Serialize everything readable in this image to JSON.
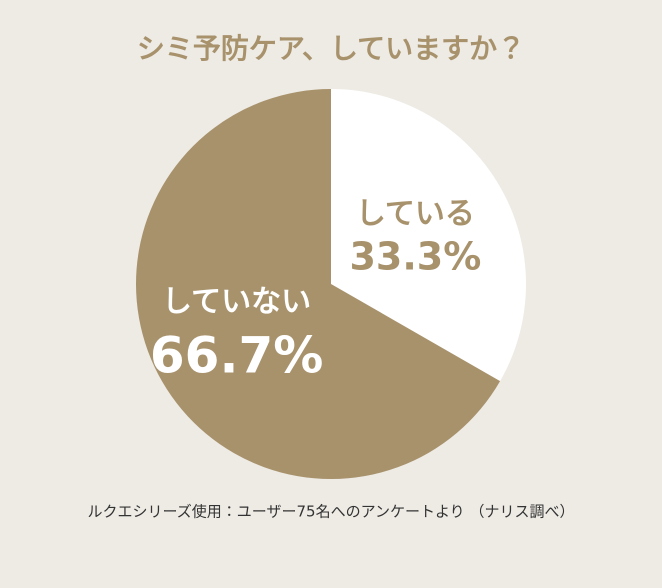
{
  "chart_data": {
    "type": "pie",
    "title": "シミ予防ケア、していますか？",
    "categories": [
      "している",
      "していない"
    ],
    "values": [
      33.3,
      66.7
    ],
    "value_labels": [
      "33.3%",
      "66.7%"
    ],
    "colors": [
      "#ffffff",
      "#a8926c"
    ],
    "note": "ルクエシリーズ使用：ユーザー75名へのアンケートより （ナリス調べ）"
  }
}
